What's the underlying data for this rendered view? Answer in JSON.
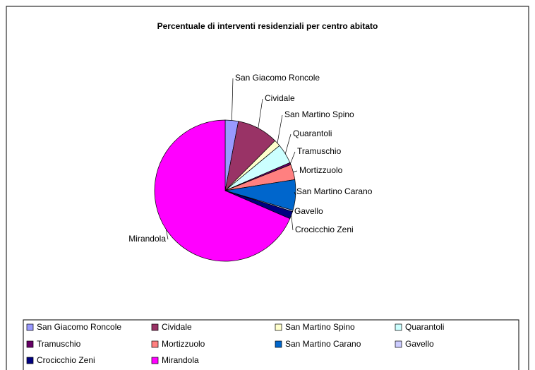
{
  "chart_data": {
    "type": "pie",
    "title": "Percentuale di interventi residenziali per centro abitato",
    "categories": [
      "San Giacomo Roncole",
      "Cividale",
      "San Martino Spino",
      "Quarantoli",
      "Tramuschio",
      "Mortizzuolo",
      "San Martino Carano",
      "Gavello",
      "Crocicchio Zeni",
      "Mirandola"
    ],
    "values": [
      3,
      9.5,
      1.5,
      4.5,
      0.5,
      3.5,
      7,
      0.3,
      1.7,
      68.5
    ],
    "colors": [
      "#9999ff",
      "#993366",
      "#ffffcc",
      "#ccffff",
      "#660066",
      "#ff8080",
      "#0066cc",
      "#ccccff",
      "#000080",
      "#ff00ff"
    ],
    "legend": "bottom"
  }
}
